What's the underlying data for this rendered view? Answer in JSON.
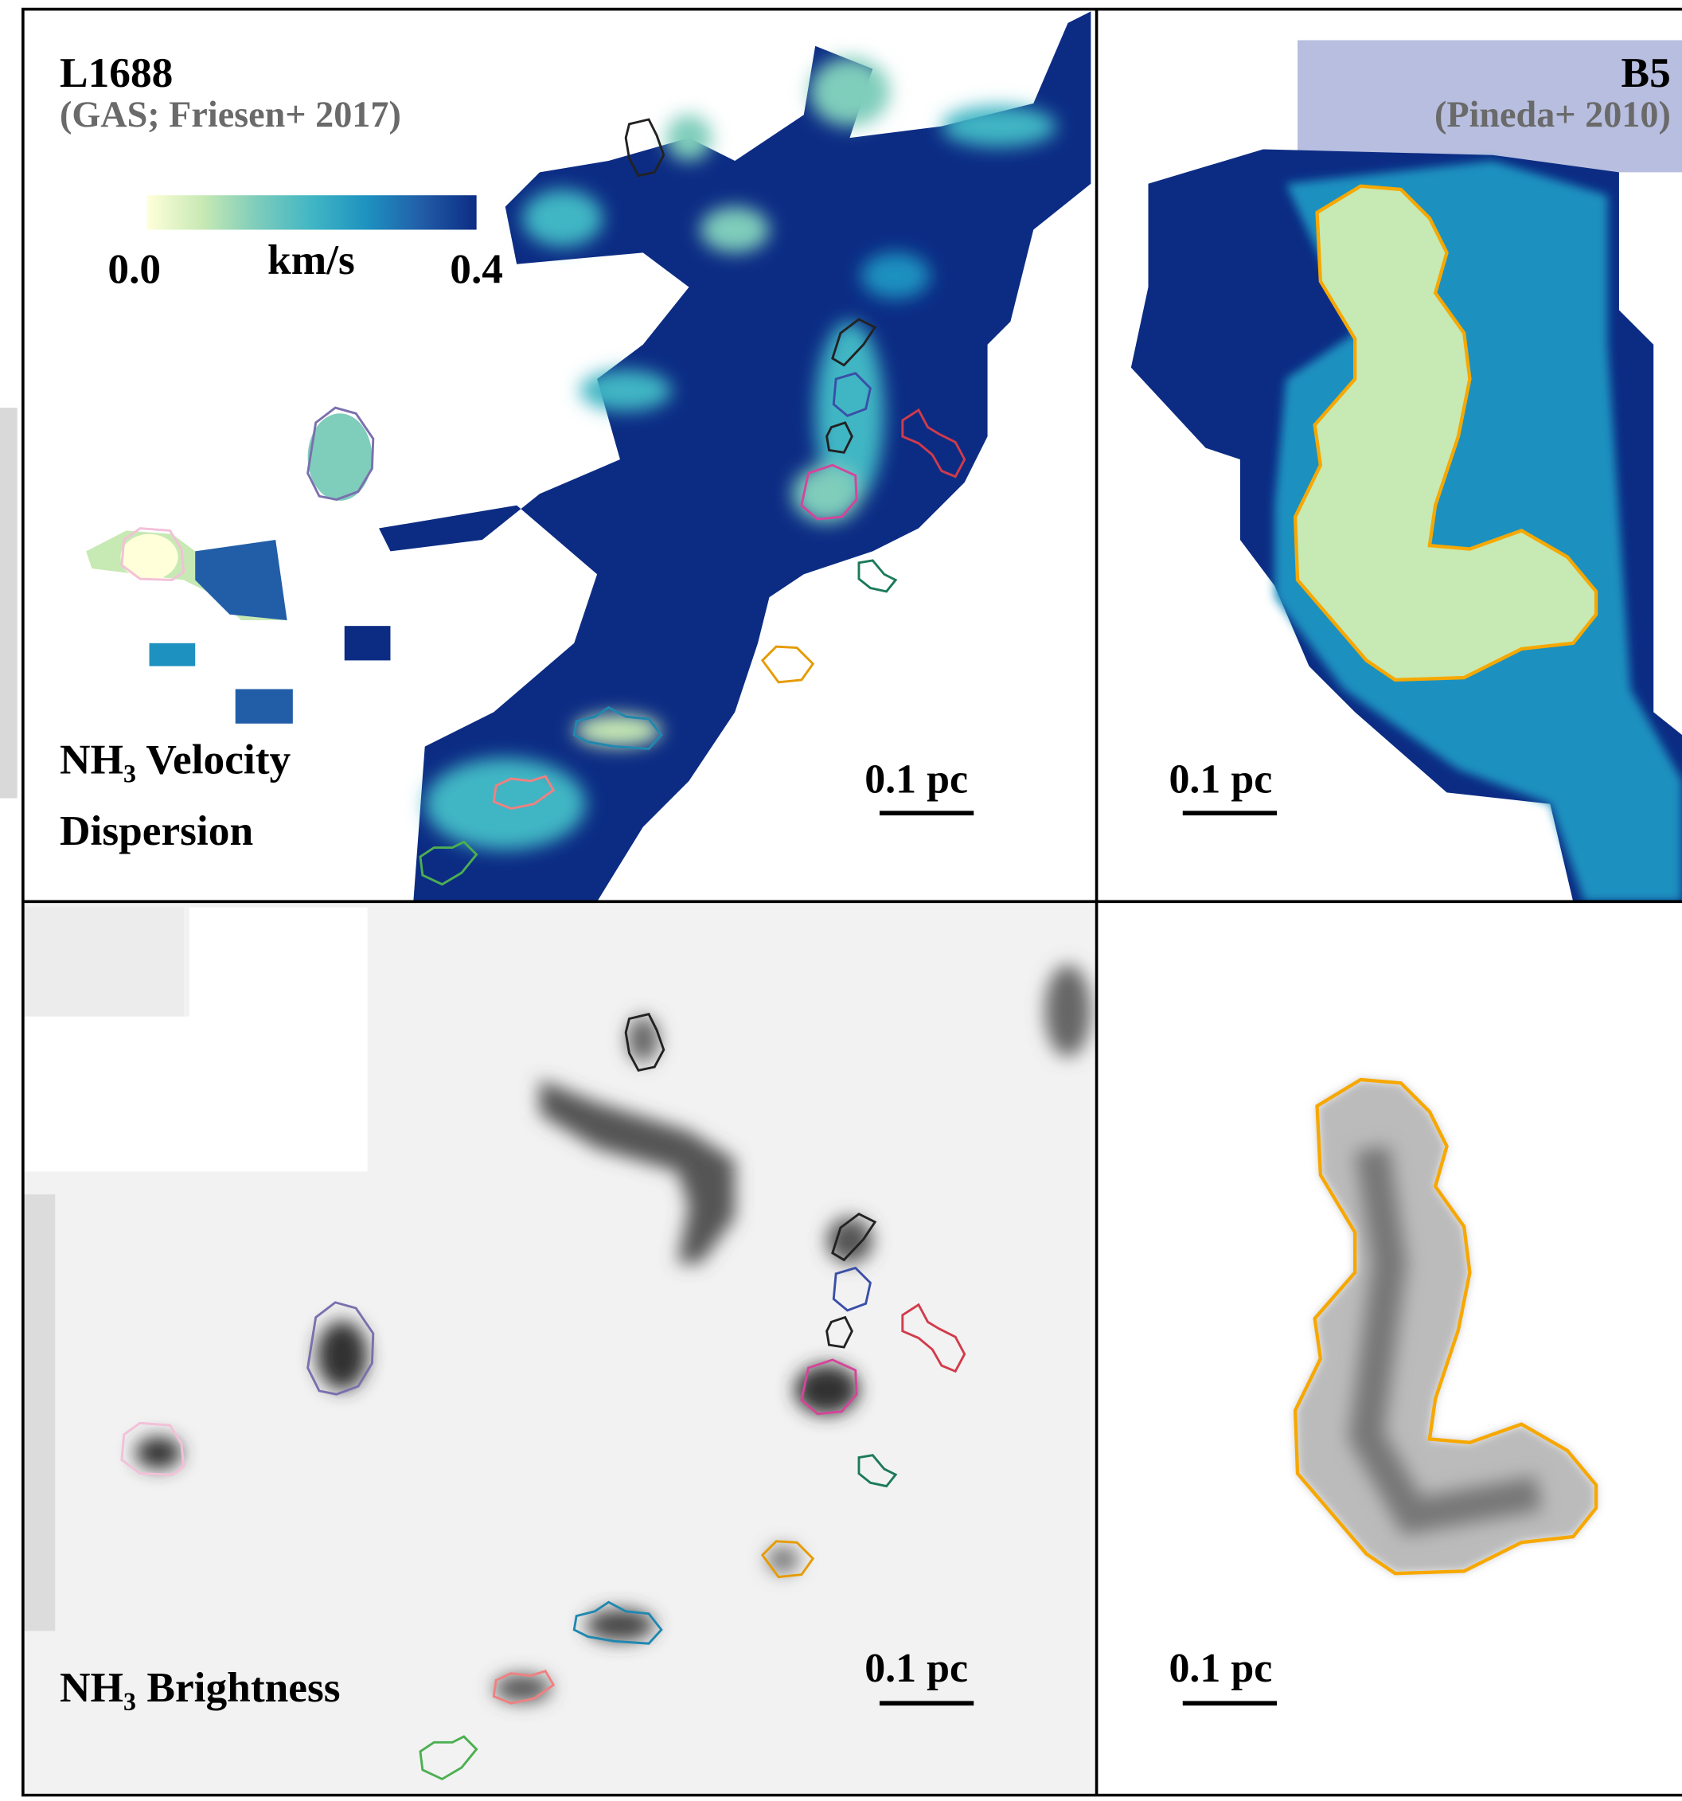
{
  "panels": [
    {
      "title": "L1688",
      "subtitle": "(GAS; Friesen+ 2017)",
      "colorbar": {
        "unit": "km/s",
        "lim": [
          0,
          0.4
        ],
        "ticks": [
          {
            "value": 0,
            "label": "0.0"
          },
          {
            "value": 0.4,
            "label": "0.4"
          }
        ]
      },
      "label": [
        "NH₃ Velocity",
        "Dispersion"
      ],
      "scale_bar": "0.1 pc"
    },
    {
      "title": "B5",
      "subtitle": "(Pineda+ 2010)",
      "scale_bar": "0.1 pc"
    },
    {
      "label": [
        "NH₃ Brightness"
      ],
      "scale_bar": "0.1 pc"
    },
    {
      "scale_bar": "0.1 pc"
    }
  ]
}
